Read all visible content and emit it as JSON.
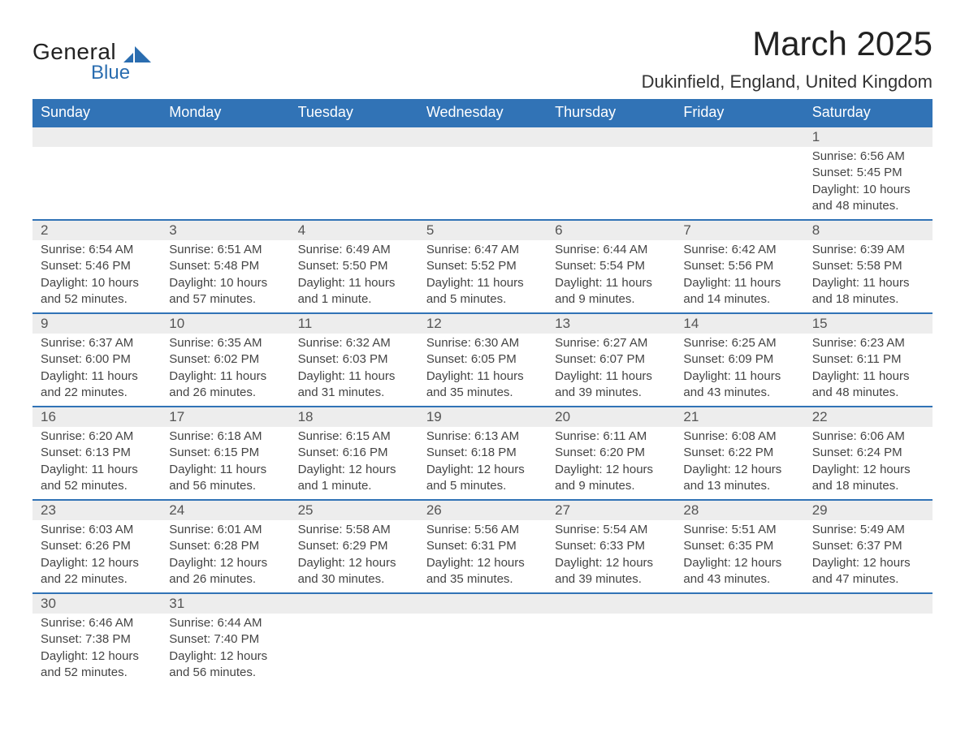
{
  "brand": {
    "name_top": "General",
    "name_bottom": "Blue",
    "accent_color": "#2a6db0"
  },
  "title": "March 2025",
  "location": "Dukinfield, England, United Kingdom",
  "header_bg": "#3173b6",
  "daynum_bg": "#ededed",
  "days_of_week": [
    "Sunday",
    "Monday",
    "Tuesday",
    "Wednesday",
    "Thursday",
    "Friday",
    "Saturday"
  ],
  "weeks": [
    [
      null,
      null,
      null,
      null,
      null,
      null,
      {
        "n": "1",
        "sunrise": "Sunrise: 6:56 AM",
        "sunset": "Sunset: 5:45 PM",
        "dl1": "Daylight: 10 hours",
        "dl2": "and 48 minutes."
      }
    ],
    [
      {
        "n": "2",
        "sunrise": "Sunrise: 6:54 AM",
        "sunset": "Sunset: 5:46 PM",
        "dl1": "Daylight: 10 hours",
        "dl2": "and 52 minutes."
      },
      {
        "n": "3",
        "sunrise": "Sunrise: 6:51 AM",
        "sunset": "Sunset: 5:48 PM",
        "dl1": "Daylight: 10 hours",
        "dl2": "and 57 minutes."
      },
      {
        "n": "4",
        "sunrise": "Sunrise: 6:49 AM",
        "sunset": "Sunset: 5:50 PM",
        "dl1": "Daylight: 11 hours",
        "dl2": "and 1 minute."
      },
      {
        "n": "5",
        "sunrise": "Sunrise: 6:47 AM",
        "sunset": "Sunset: 5:52 PM",
        "dl1": "Daylight: 11 hours",
        "dl2": "and 5 minutes."
      },
      {
        "n": "6",
        "sunrise": "Sunrise: 6:44 AM",
        "sunset": "Sunset: 5:54 PM",
        "dl1": "Daylight: 11 hours",
        "dl2": "and 9 minutes."
      },
      {
        "n": "7",
        "sunrise": "Sunrise: 6:42 AM",
        "sunset": "Sunset: 5:56 PM",
        "dl1": "Daylight: 11 hours",
        "dl2": "and 14 minutes."
      },
      {
        "n": "8",
        "sunrise": "Sunrise: 6:39 AM",
        "sunset": "Sunset: 5:58 PM",
        "dl1": "Daylight: 11 hours",
        "dl2": "and 18 minutes."
      }
    ],
    [
      {
        "n": "9",
        "sunrise": "Sunrise: 6:37 AM",
        "sunset": "Sunset: 6:00 PM",
        "dl1": "Daylight: 11 hours",
        "dl2": "and 22 minutes."
      },
      {
        "n": "10",
        "sunrise": "Sunrise: 6:35 AM",
        "sunset": "Sunset: 6:02 PM",
        "dl1": "Daylight: 11 hours",
        "dl2": "and 26 minutes."
      },
      {
        "n": "11",
        "sunrise": "Sunrise: 6:32 AM",
        "sunset": "Sunset: 6:03 PM",
        "dl1": "Daylight: 11 hours",
        "dl2": "and 31 minutes."
      },
      {
        "n": "12",
        "sunrise": "Sunrise: 6:30 AM",
        "sunset": "Sunset: 6:05 PM",
        "dl1": "Daylight: 11 hours",
        "dl2": "and 35 minutes."
      },
      {
        "n": "13",
        "sunrise": "Sunrise: 6:27 AM",
        "sunset": "Sunset: 6:07 PM",
        "dl1": "Daylight: 11 hours",
        "dl2": "and 39 minutes."
      },
      {
        "n": "14",
        "sunrise": "Sunrise: 6:25 AM",
        "sunset": "Sunset: 6:09 PM",
        "dl1": "Daylight: 11 hours",
        "dl2": "and 43 minutes."
      },
      {
        "n": "15",
        "sunrise": "Sunrise: 6:23 AM",
        "sunset": "Sunset: 6:11 PM",
        "dl1": "Daylight: 11 hours",
        "dl2": "and 48 minutes."
      }
    ],
    [
      {
        "n": "16",
        "sunrise": "Sunrise: 6:20 AM",
        "sunset": "Sunset: 6:13 PM",
        "dl1": "Daylight: 11 hours",
        "dl2": "and 52 minutes."
      },
      {
        "n": "17",
        "sunrise": "Sunrise: 6:18 AM",
        "sunset": "Sunset: 6:15 PM",
        "dl1": "Daylight: 11 hours",
        "dl2": "and 56 minutes."
      },
      {
        "n": "18",
        "sunrise": "Sunrise: 6:15 AM",
        "sunset": "Sunset: 6:16 PM",
        "dl1": "Daylight: 12 hours",
        "dl2": "and 1 minute."
      },
      {
        "n": "19",
        "sunrise": "Sunrise: 6:13 AM",
        "sunset": "Sunset: 6:18 PM",
        "dl1": "Daylight: 12 hours",
        "dl2": "and 5 minutes."
      },
      {
        "n": "20",
        "sunrise": "Sunrise: 6:11 AM",
        "sunset": "Sunset: 6:20 PM",
        "dl1": "Daylight: 12 hours",
        "dl2": "and 9 minutes."
      },
      {
        "n": "21",
        "sunrise": "Sunrise: 6:08 AM",
        "sunset": "Sunset: 6:22 PM",
        "dl1": "Daylight: 12 hours",
        "dl2": "and 13 minutes."
      },
      {
        "n": "22",
        "sunrise": "Sunrise: 6:06 AM",
        "sunset": "Sunset: 6:24 PM",
        "dl1": "Daylight: 12 hours",
        "dl2": "and 18 minutes."
      }
    ],
    [
      {
        "n": "23",
        "sunrise": "Sunrise: 6:03 AM",
        "sunset": "Sunset: 6:26 PM",
        "dl1": "Daylight: 12 hours",
        "dl2": "and 22 minutes."
      },
      {
        "n": "24",
        "sunrise": "Sunrise: 6:01 AM",
        "sunset": "Sunset: 6:28 PM",
        "dl1": "Daylight: 12 hours",
        "dl2": "and 26 minutes."
      },
      {
        "n": "25",
        "sunrise": "Sunrise: 5:58 AM",
        "sunset": "Sunset: 6:29 PM",
        "dl1": "Daylight: 12 hours",
        "dl2": "and 30 minutes."
      },
      {
        "n": "26",
        "sunrise": "Sunrise: 5:56 AM",
        "sunset": "Sunset: 6:31 PM",
        "dl1": "Daylight: 12 hours",
        "dl2": "and 35 minutes."
      },
      {
        "n": "27",
        "sunrise": "Sunrise: 5:54 AM",
        "sunset": "Sunset: 6:33 PM",
        "dl1": "Daylight: 12 hours",
        "dl2": "and 39 minutes."
      },
      {
        "n": "28",
        "sunrise": "Sunrise: 5:51 AM",
        "sunset": "Sunset: 6:35 PM",
        "dl1": "Daylight: 12 hours",
        "dl2": "and 43 minutes."
      },
      {
        "n": "29",
        "sunrise": "Sunrise: 5:49 AM",
        "sunset": "Sunset: 6:37 PM",
        "dl1": "Daylight: 12 hours",
        "dl2": "and 47 minutes."
      }
    ],
    [
      {
        "n": "30",
        "sunrise": "Sunrise: 6:46 AM",
        "sunset": "Sunset: 7:38 PM",
        "dl1": "Daylight: 12 hours",
        "dl2": "and 52 minutes."
      },
      {
        "n": "31",
        "sunrise": "Sunrise: 6:44 AM",
        "sunset": "Sunset: 7:40 PM",
        "dl1": "Daylight: 12 hours",
        "dl2": "and 56 minutes."
      },
      null,
      null,
      null,
      null,
      null
    ]
  ]
}
